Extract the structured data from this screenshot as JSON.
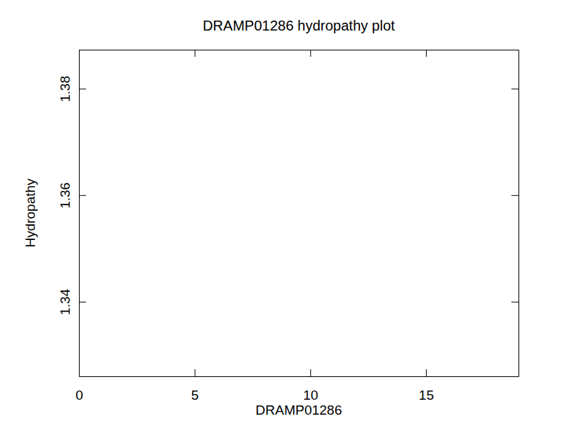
{
  "chart_data": {
    "type": "line",
    "title": "DRAMP01286 hydropathy plot",
    "x_label": "DRAMP01286",
    "y_label": "Hydropathy",
    "x": [],
    "values": [],
    "xlim": [
      0,
      19
    ],
    "xticks": [
      0,
      5,
      10,
      15
    ],
    "ylim": [
      1.326,
      1.3873
    ],
    "yticks": [
      1.34,
      1.36,
      1.38
    ],
    "grid": false
  }
}
